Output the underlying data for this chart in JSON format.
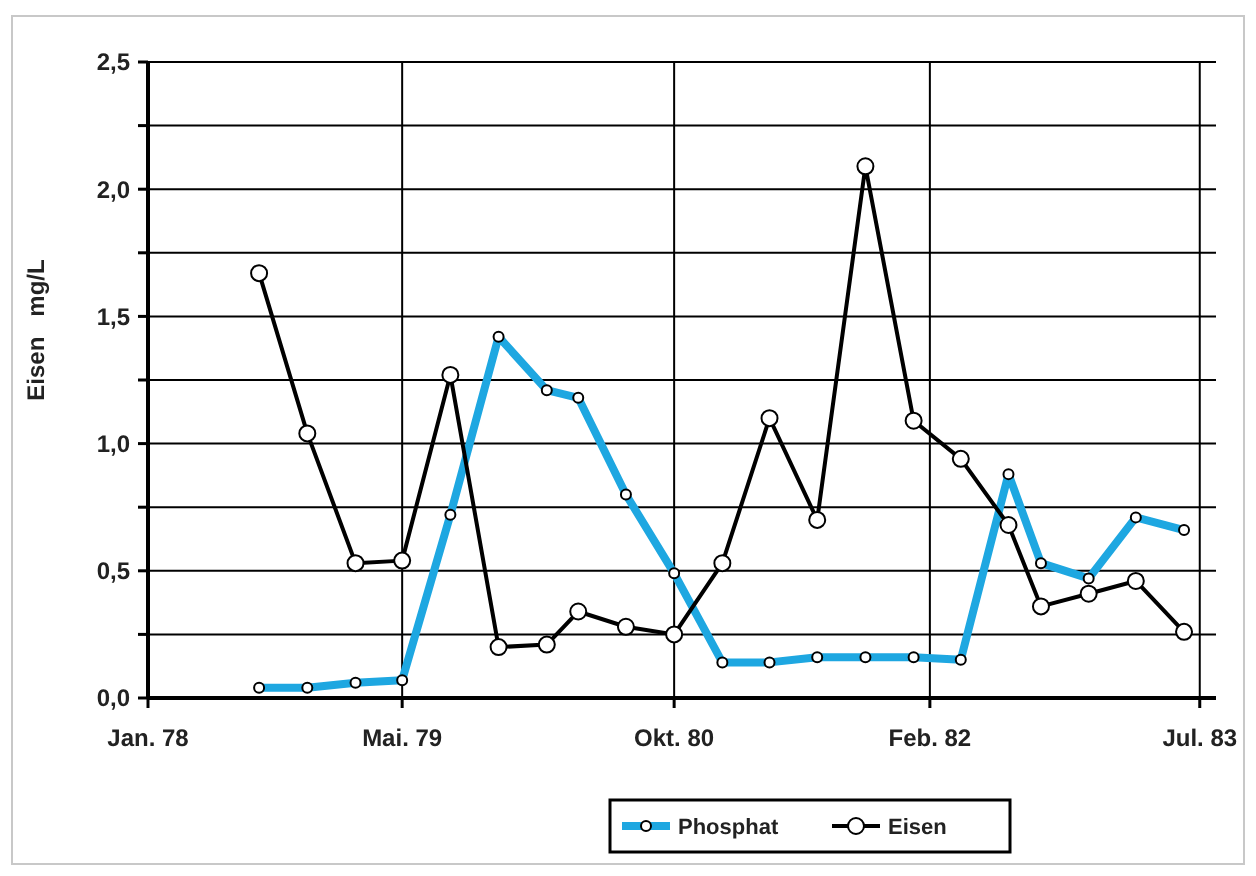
{
  "chart_data": {
    "type": "line",
    "ylabel": "Eisen   mg/L",
    "x": [
      "1978-08",
      "1978-11",
      "1979-02",
      "1979-05",
      "1979-08",
      "1979-11",
      "1980-02",
      "1980-04",
      "1980-07",
      "1980-10",
      "1981-01",
      "1981-04",
      "1981-07",
      "1981-10",
      "1982-01",
      "1982-04",
      "1982-07",
      "1982-09",
      "1982-12",
      "1983-03",
      "1983-06"
    ],
    "series": [
      {
        "name": "Phosphat",
        "color": "#1ea7e1",
        "values": [
          0.04,
          0.04,
          0.06,
          0.07,
          0.72,
          1.42,
          1.21,
          1.18,
          0.8,
          0.49,
          0.14,
          0.14,
          0.16,
          0.16,
          0.16,
          0.15,
          0.88,
          0.53,
          0.47,
          0.71,
          0.66
        ]
      },
      {
        "name": "Eisen",
        "color": "#000000",
        "values": [
          1.67,
          1.04,
          0.53,
          0.54,
          1.27,
          0.2,
          0.21,
          0.34,
          0.28,
          0.25,
          0.53,
          1.1,
          0.7,
          2.09,
          1.09,
          0.94,
          0.68,
          0.36,
          0.41,
          0.46,
          0.26
        ]
      }
    ],
    "xlim": [
      "1978-01",
      "1983-08"
    ],
    "xticks": [
      {
        "value": "1978-01",
        "label": "Jan. 78"
      },
      {
        "value": "1979-05",
        "label": "Mai. 79"
      },
      {
        "value": "1980-10",
        "label": "Okt. 80"
      },
      {
        "value": "1982-02",
        "label": "Feb. 82"
      },
      {
        "value": "1983-07",
        "label": "Jul. 83"
      }
    ],
    "ylim": [
      0,
      2.5
    ],
    "yticks": [
      {
        "value": 0,
        "label": "0,0"
      },
      {
        "value": 0.25,
        "label": null
      },
      {
        "value": 0.5,
        "label": "0,5"
      },
      {
        "value": 0.75,
        "label": null
      },
      {
        "value": 1,
        "label": "1,0"
      },
      {
        "value": 1.25,
        "label": null
      },
      {
        "value": 1.5,
        "label": "1,5"
      },
      {
        "value": 1.75,
        "label": null
      },
      {
        "value": 2,
        "label": "2,0"
      },
      {
        "value": 2.25,
        "label": null
      },
      {
        "value": 2.5,
        "label": "2,5"
      }
    ],
    "grid": true,
    "legend": "bottom",
    "marker": "circle",
    "line_style": "solid"
  }
}
